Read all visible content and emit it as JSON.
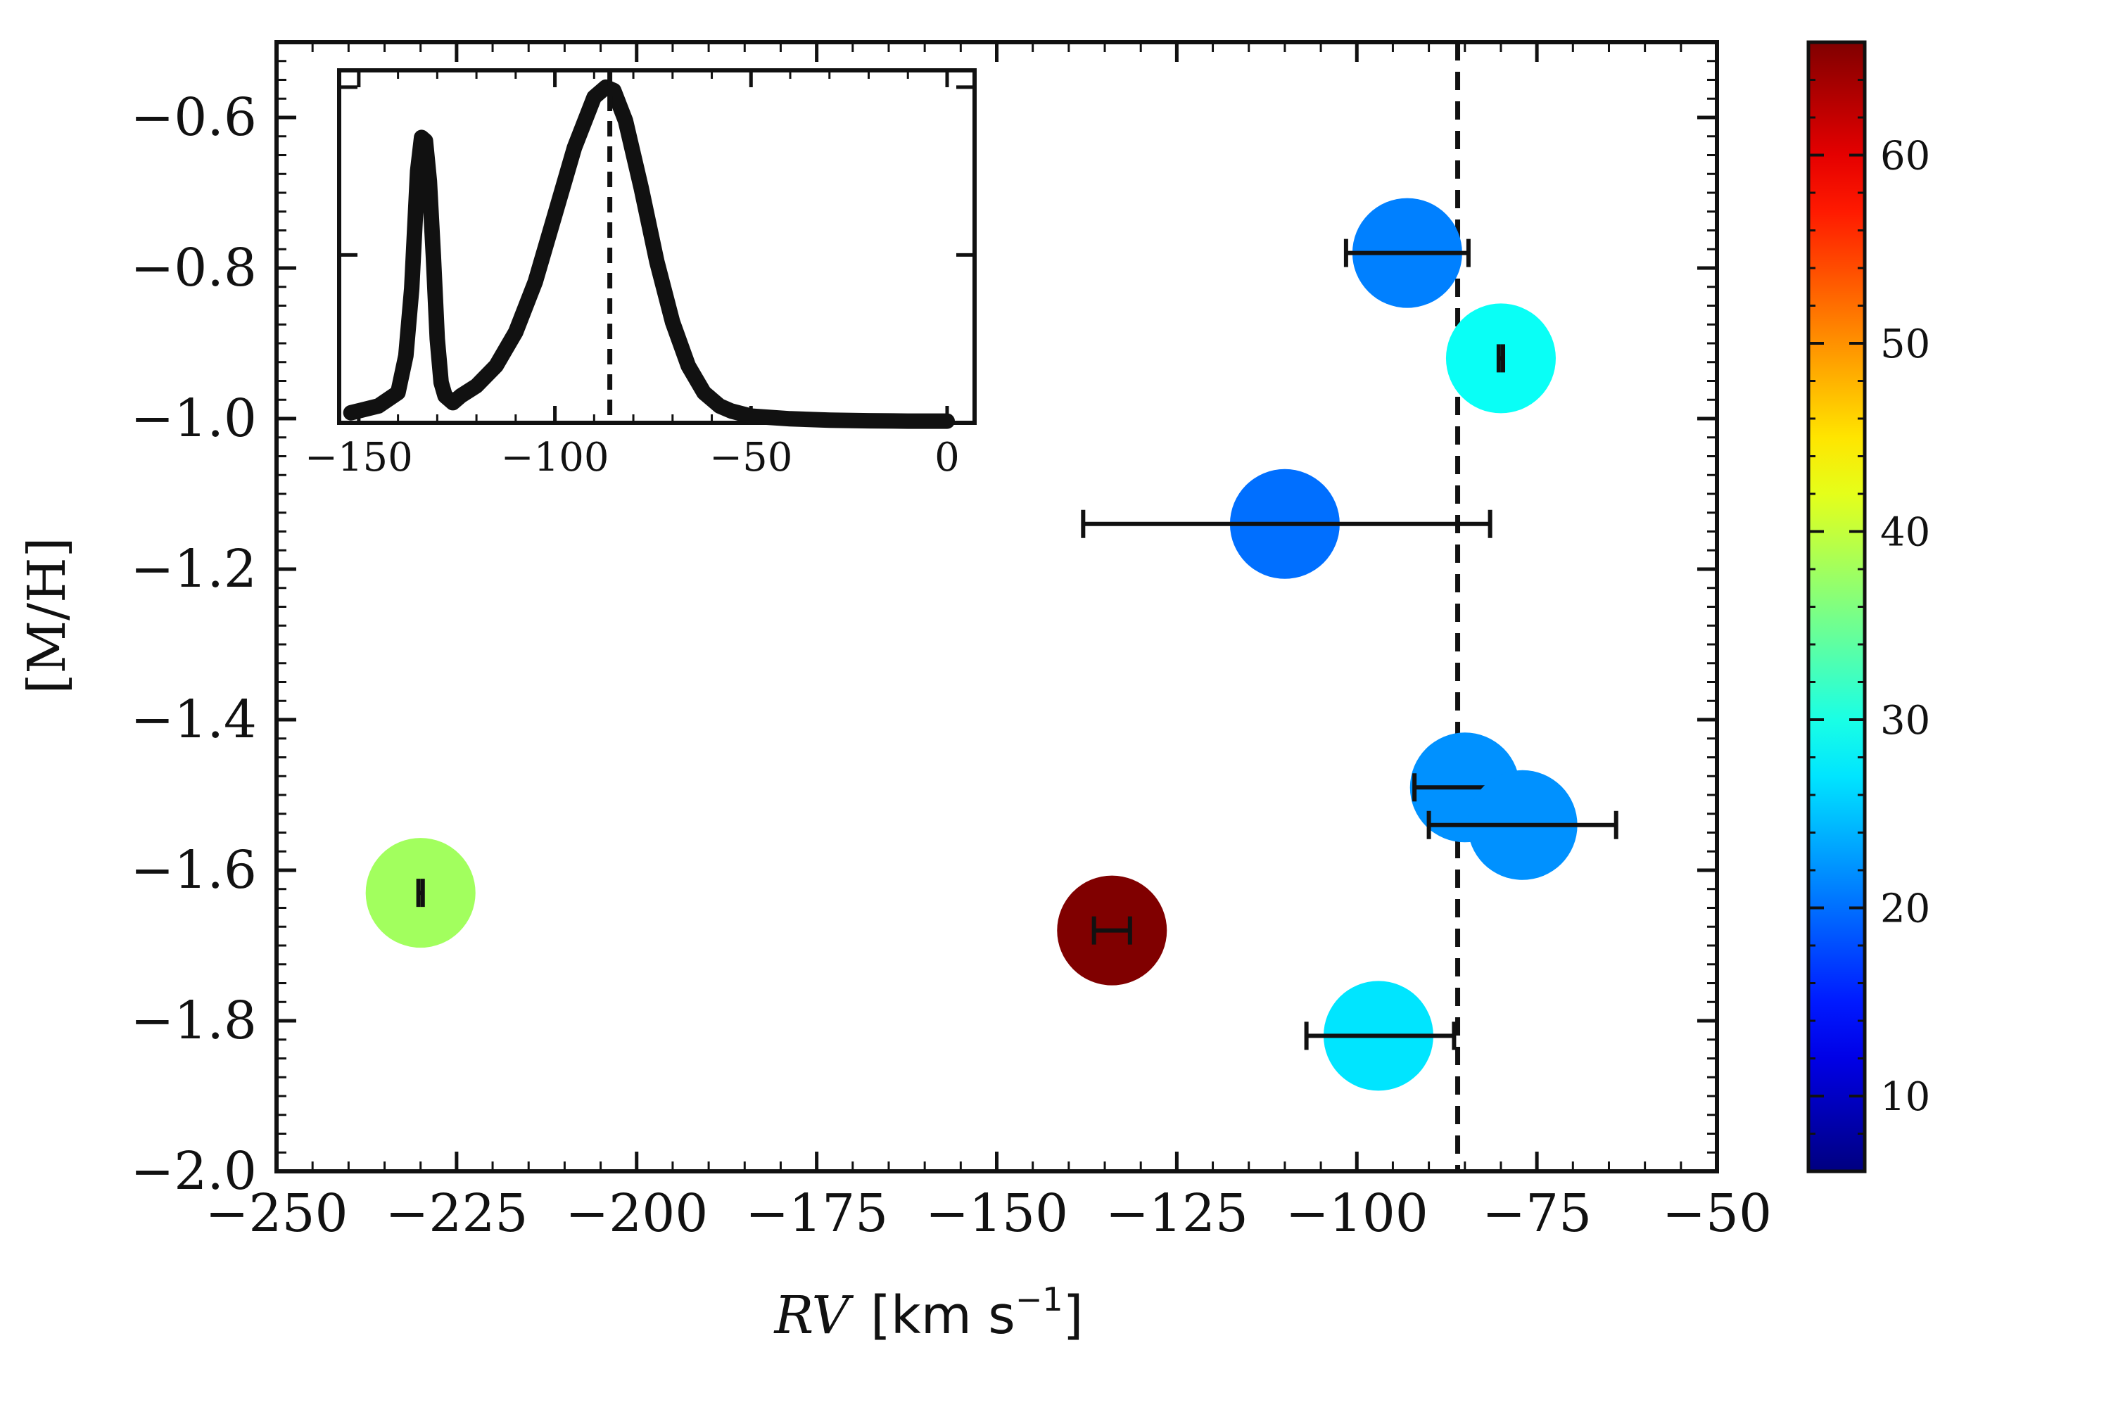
{
  "chart_data": [
    {
      "type": "scatter",
      "xlabel_var": "RV",
      "xlabel_unit": "[km s",
      "xlabel_exp": "−1",
      "xlabel_close": "]",
      "ylabel": "[M/H]",
      "xlim": [
        -250,
        -50
      ],
      "ylim": [
        -2.0,
        -0.5
      ],
      "xticks": [
        -250,
        -225,
        -200,
        -175,
        -150,
        -125,
        -100,
        -75,
        -50
      ],
      "xtick_labels": [
        "−250",
        "−225",
        "−200",
        "−175",
        "−150",
        "−125",
        "−100",
        "−75",
        "−50"
      ],
      "yticks": [
        -0.6,
        -0.8,
        -1.0,
        -1.2,
        -1.4,
        -1.6,
        -1.8,
        -2.0
      ],
      "ytick_labels": [
        "−0.6",
        "−0.8",
        "−1.0",
        "−1.2",
        "−1.4",
        "−1.6",
        "−1.8",
        "−2.0"
      ],
      "vline_x": -86,
      "points": [
        {
          "x": -93,
          "y": -0.78,
          "xerr_low": 8.5,
          "xerr_high": 8.5,
          "c": 21
        },
        {
          "x": -80,
          "y": -0.92,
          "xerr_low": 0.3,
          "xerr_high": 0.3,
          "c": 29
        },
        {
          "x": -110,
          "y": -1.14,
          "xerr_low": 28,
          "xerr_high": 28.5,
          "c": 20
        },
        {
          "x": -85,
          "y": -1.49,
          "xerr_low": 7,
          "xerr_high": 7,
          "c": 22
        },
        {
          "x": -77,
          "y": -1.54,
          "xerr_low": 13,
          "xerr_high": 13,
          "c": 22
        },
        {
          "x": -230,
          "y": -1.63,
          "xerr_low": 0.3,
          "xerr_high": 0.3,
          "c": 38
        },
        {
          "x": -134,
          "y": -1.68,
          "xerr_low": 2.5,
          "xerr_high": 2.5,
          "c": 66
        },
        {
          "x": -97,
          "y": -1.82,
          "xerr_low": 10,
          "xerr_high": 10.5,
          "c": 27
        }
      ],
      "colorbar": {
        "colormap": "jet",
        "range": [
          6,
          66
        ],
        "ticks": [
          10,
          20,
          30,
          40,
          50,
          60
        ],
        "tick_labels": [
          "10",
          "20",
          "30",
          "40",
          "50",
          "60"
        ]
      }
    },
    {
      "type": "line",
      "inset": true,
      "xlim": [
        -155,
        7
      ],
      "ylim": [
        0,
        1.05
      ],
      "xticks": [
        -150,
        -100,
        -50,
        0
      ],
      "xtick_labels": [
        "−150",
        "−100",
        "−50",
        "0"
      ],
      "vline_x": -86,
      "x": [
        -152,
        -145,
        -140,
        -138,
        -136.5,
        -135,
        -134,
        -133,
        -132,
        -131,
        -130,
        -129,
        -128,
        -126,
        -124,
        -120,
        -115,
        -110,
        -105,
        -100,
        -95,
        -90,
        -87,
        -85,
        -82,
        -78,
        -74,
        -70,
        -66,
        -62,
        -58,
        -55,
        -50,
        -40,
        -30,
        -20,
        -10,
        0
      ],
      "y": [
        0.03,
        0.05,
        0.09,
        0.2,
        0.4,
        0.75,
        0.85,
        0.84,
        0.72,
        0.5,
        0.25,
        0.12,
        0.08,
        0.06,
        0.08,
        0.11,
        0.17,
        0.27,
        0.42,
        0.62,
        0.82,
        0.97,
        1.0,
        0.99,
        0.9,
        0.7,
        0.48,
        0.3,
        0.17,
        0.09,
        0.05,
        0.035,
        0.02,
        0.012,
        0.008,
        0.006,
        0.005,
        0.005
      ]
    }
  ]
}
